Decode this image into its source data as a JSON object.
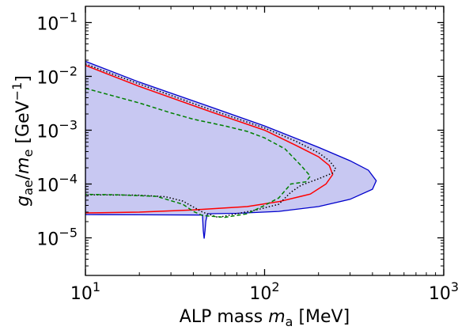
{
  "chart_data": {
    "type": "area",
    "x_scale": "log",
    "y_scale": "log",
    "xlim": [
      10,
      1000
    ],
    "ylim": [
      2e-06,
      0.2
    ],
    "grid": false,
    "legend": "none",
    "xlabel": {
      "main": "ALP mass ",
      "italic": "m",
      "sub": "a",
      "unit": " [MeV]"
    },
    "ylabel": {
      "italic1": "g",
      "sub1": "ae",
      "slash": "/",
      "italic2": "m",
      "sub2": "e",
      "unit_open": " [GeV",
      "sup": "−1",
      "unit_close": "]"
    },
    "x_ticks": [
      {
        "value": 10,
        "base": "10",
        "exp": "1"
      },
      {
        "value": 100,
        "base": "10",
        "exp": "2"
      },
      {
        "value": 1000,
        "base": "10",
        "exp": "3"
      }
    ],
    "y_ticks": [
      {
        "value": 1e-05,
        "base": "10",
        "exp": "−5"
      },
      {
        "value": 0.0001,
        "base": "10",
        "exp": "−4"
      },
      {
        "value": 0.001,
        "base": "10",
        "exp": "−3"
      },
      {
        "value": 0.01,
        "base": "10",
        "exp": "−2"
      },
      {
        "value": 0.1,
        "base": "10",
        "exp": "−1"
      }
    ],
    "series": [
      {
        "style": "filled-region",
        "color": "#0000cc",
        "fill": "#c8c8f2",
        "points": [
          [
            10,
            0.019
          ],
          [
            20,
            0.0078
          ],
          [
            50,
            0.0027
          ],
          [
            100,
            0.0012
          ],
          [
            200,
            0.00048
          ],
          [
            300,
            0.00027
          ],
          [
            380,
            0.00018
          ],
          [
            420,
            0.000115
          ],
          [
            400,
            8e-05
          ],
          [
            300,
            5.2e-05
          ],
          [
            200,
            3.8e-05
          ],
          [
            120,
            3.1e-05
          ],
          [
            70,
            2.85e-05
          ],
          [
            48,
            2.8e-05
          ],
          [
            47,
            2.05e-05
          ],
          [
            46.5,
            1.35e-05
          ],
          [
            46,
            9.7e-06
          ],
          [
            45.5,
            1.35e-05
          ],
          [
            45,
            2.65e-05
          ],
          [
            20,
            2.68e-05
          ],
          [
            10,
            2.7e-05
          ]
        ]
      },
      {
        "style": "solid",
        "color": "#ff0000",
        "points": [
          [
            10,
            0.016
          ],
          [
            20,
            0.0065
          ],
          [
            50,
            0.0022
          ],
          [
            100,
            0.001
          ],
          [
            150,
            0.00052
          ],
          [
            200,
            0.00032
          ],
          [
            230,
            0.00022
          ],
          [
            240,
            0.00015
          ],
          [
            220,
            0.0001
          ],
          [
            180,
            6.5e-05
          ],
          [
            120,
            4.7e-05
          ],
          [
            80,
            3.8e-05
          ],
          [
            40,
            3.3e-05
          ],
          [
            20,
            3e-05
          ],
          [
            10,
            2.9e-05
          ]
        ]
      },
      {
        "style": "dotted",
        "color": "#000000",
        "points": [
          [
            10,
            0.017
          ],
          [
            20,
            0.0072
          ],
          [
            50,
            0.0024
          ],
          [
            100,
            0.0011
          ],
          [
            150,
            0.00062
          ],
          [
            200,
            0.00038
          ],
          [
            230,
            0.00027
          ],
          [
            250,
            0.00019
          ],
          [
            240,
            0.00016
          ],
          [
            200,
            0.000125
          ],
          [
            160,
            9.5e-05
          ],
          [
            140,
            7e-05
          ],
          [
            120,
            4.2e-05
          ],
          [
            90,
            3.3e-05
          ],
          [
            70,
            2.8e-05
          ],
          [
            55,
            2.4e-05
          ],
          [
            45,
            3e-05
          ],
          [
            35,
            4.8e-05
          ],
          [
            28,
            5.8e-05
          ],
          [
            20,
            6.2e-05
          ],
          [
            10,
            6.3e-05
          ]
        ]
      },
      {
        "style": "dashed",
        "color": "#008000",
        "points": [
          [
            10,
            0.006
          ],
          [
            20,
            0.0032
          ],
          [
            30,
            0.0021
          ],
          [
            40,
            0.0016
          ],
          [
            60,
            0.0012
          ],
          [
            80,
            0.00095
          ],
          [
            100,
            0.00072
          ],
          [
            130,
            0.00045
          ],
          [
            160,
            0.00022
          ],
          [
            180,
            0.00014
          ],
          [
            170,
            0.00011
          ],
          [
            140,
            0.0001
          ],
          [
            120,
            5.5e-05
          ],
          [
            100,
            4e-05
          ],
          [
            80,
            2.8e-05
          ],
          [
            60,
            2.4e-05
          ],
          [
            45,
            2.6e-05
          ],
          [
            40,
            3.1e-05
          ],
          [
            35,
            4.2e-05
          ],
          [
            25,
            5.9e-05
          ],
          [
            15,
            6.3e-05
          ],
          [
            10,
            6.4e-05
          ]
        ]
      }
    ]
  }
}
